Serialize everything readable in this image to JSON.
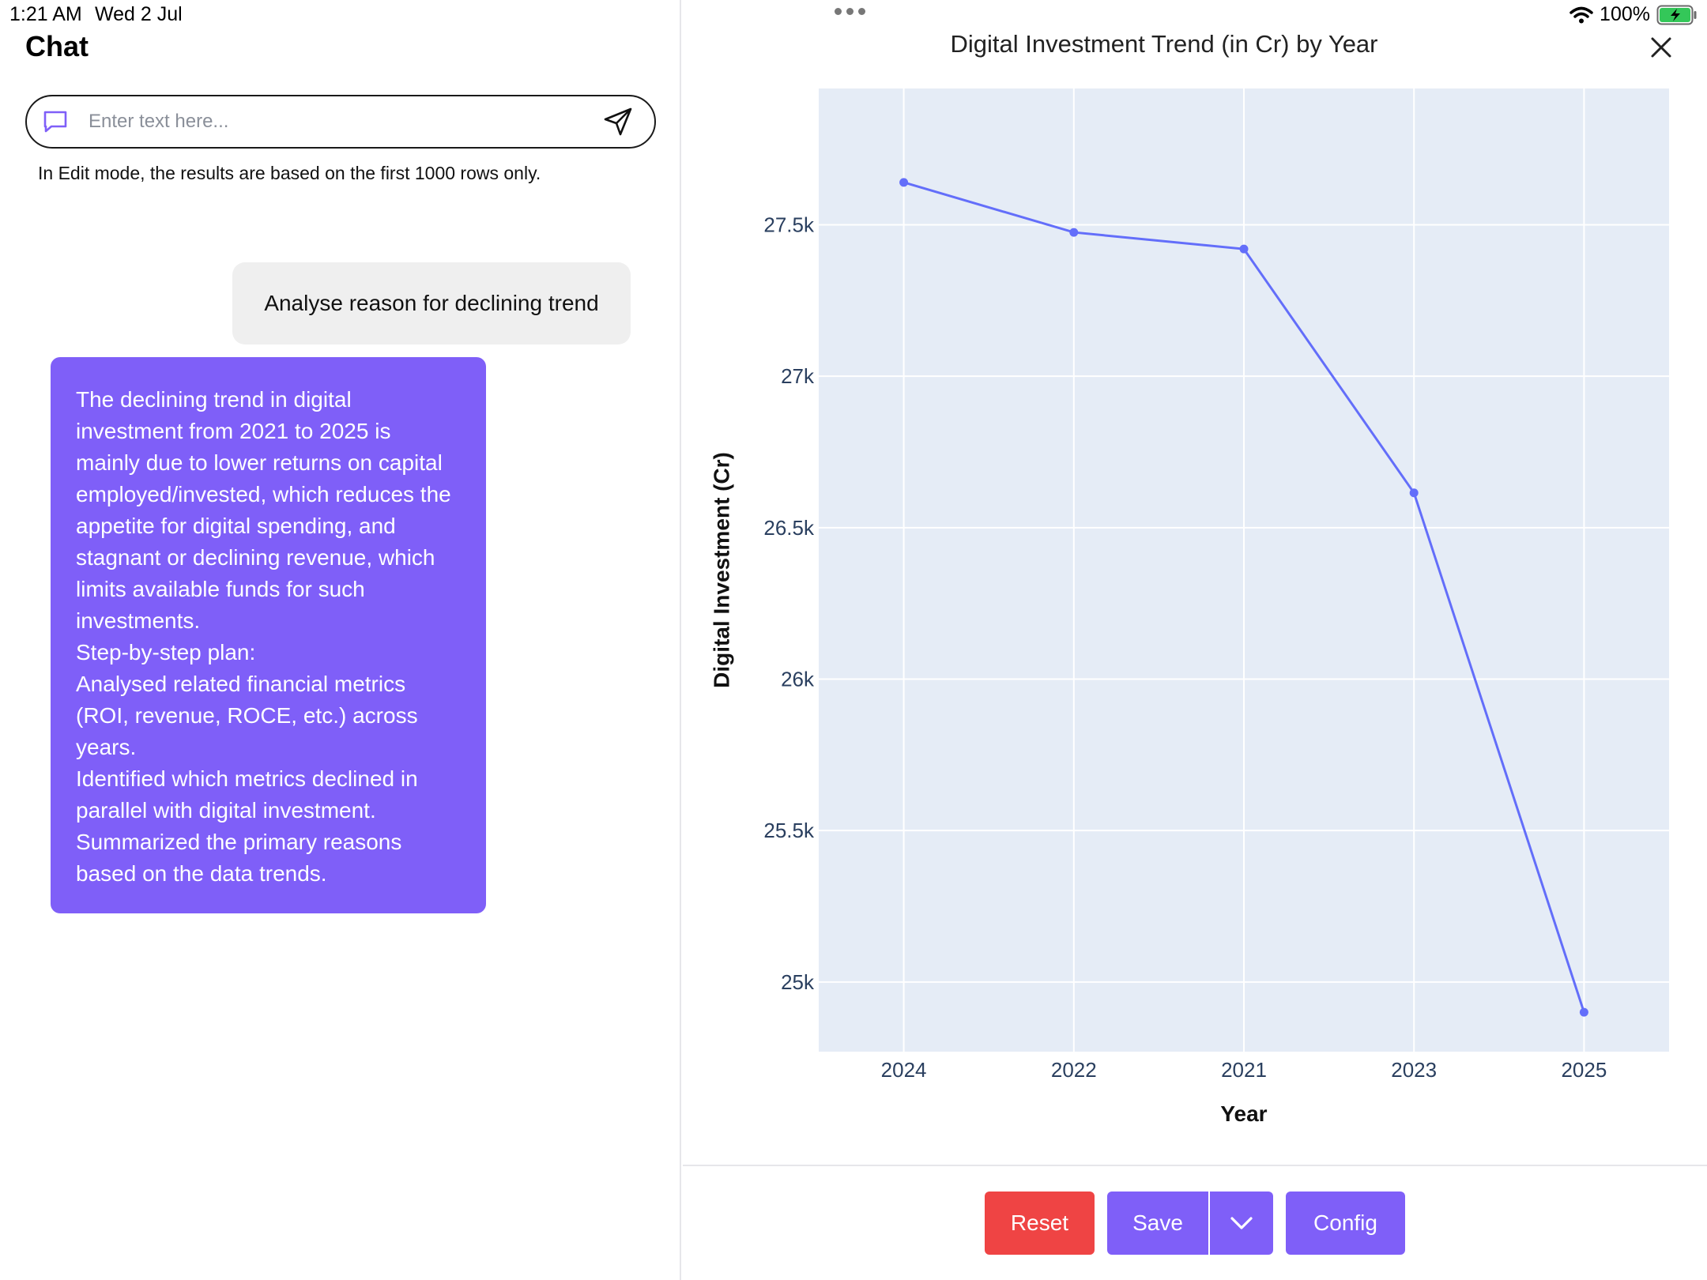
{
  "status_bar": {
    "time": "1:21 AM",
    "date": "Wed 2 Jul",
    "battery": "100%"
  },
  "chat": {
    "title": "Chat",
    "input_placeholder": "Enter text here...",
    "edit_note": "In Edit mode, the results are based on the first 1000 rows only.",
    "user_message": "Analyse reason for declining trend",
    "bot_message": [
      "The declining trend in digital investment from 2021 to 2025 is mainly due to lower returns on capital employed/invested, which reduces the appetite for digital spending, and stagnant or declining revenue, which limits available funds for such investments.",
      "Step-by-step plan:",
      "Analysed related financial metrics (ROI, revenue, ROCE, etc.) across years.",
      "Identified which metrics declined in parallel with digital investment.",
      "Summarized the primary reasons based on the data trends."
    ]
  },
  "chart_panel": {
    "buttons": {
      "reset": "Reset",
      "save": "Save",
      "config": "Config"
    }
  },
  "chart_data": {
    "type": "line",
    "title": "Digital Investment Trend (in Cr) by Year",
    "xlabel": "Year",
    "ylabel": "Digital Investment (Cr)",
    "categories": [
      "2024",
      "2022",
      "2021",
      "2023",
      "2025"
    ],
    "series": [
      {
        "values": [
          27640,
          27475,
          27420,
          26615,
          24900
        ],
        "color": "#636efa"
      }
    ],
    "ylim": [
      24770,
      27950
    ],
    "yticks": [
      25000,
      25500,
      26000,
      26500,
      27000,
      27500
    ],
    "ytick_labels": [
      "25k",
      "25.5k",
      "26k",
      "26.5k",
      "27k",
      "27.5k"
    ],
    "grid": true,
    "plot_background": "#e5ecf6"
  },
  "colors": {
    "accent": "#7f5ff8",
    "danger": "#ef4444",
    "line": "#636efa"
  }
}
